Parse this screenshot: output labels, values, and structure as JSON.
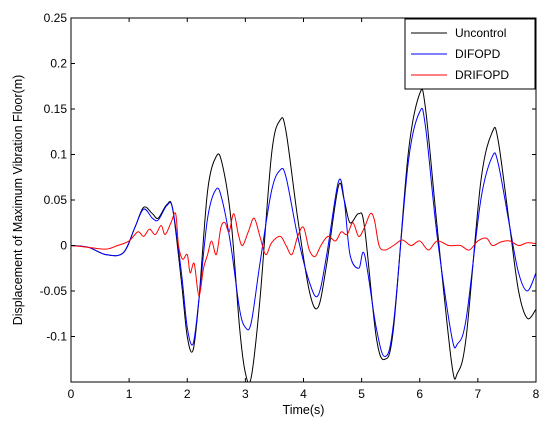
{
  "chart_data": {
    "type": "line",
    "title": "",
    "xlabel": "Time(s)",
    "ylabel": "Displacement of Maximum Vibration Floor(m)",
    "xlim": [
      0,
      8
    ],
    "ylim": [
      -0.15,
      0.25
    ],
    "xticks": [
      0,
      1,
      2,
      3,
      4,
      5,
      6,
      7,
      8
    ],
    "xtick_labels": [
      "0",
      "1",
      "2",
      "3",
      "4",
      "5",
      "6",
      "7",
      "8"
    ],
    "yticks": [
      -0.1,
      -0.05,
      0,
      0.05,
      0.1,
      0.15,
      0.2,
      0.25
    ],
    "ytick_labels": [
      "-0.1",
      "-0.05",
      "0",
      "0.05",
      "0.1",
      "0.15",
      "0.2",
      "0.25"
    ],
    "grid": false,
    "legend_position": "top-right",
    "series": [
      {
        "name": "Uncontrol",
        "color": "#000000",
        "points": [
          [
            0,
            0
          ],
          [
            0.3,
            -0.002
          ],
          [
            0.6,
            -0.01
          ],
          [
            0.9,
            -0.008
          ],
          [
            1.1,
            0.02
          ],
          [
            1.25,
            0.042
          ],
          [
            1.4,
            0.035
          ],
          [
            1.5,
            0.03
          ],
          [
            1.65,
            0.045
          ],
          [
            1.75,
            0.04
          ],
          [
            1.9,
            -0.04
          ],
          [
            2.0,
            -0.1
          ],
          [
            2.1,
            -0.115
          ],
          [
            2.2,
            -0.06
          ],
          [
            2.35,
            0.06
          ],
          [
            2.5,
            0.098
          ],
          [
            2.6,
            0.09
          ],
          [
            2.75,
            0.03
          ],
          [
            2.9,
            -0.09
          ],
          [
            3.0,
            -0.14
          ],
          [
            3.1,
            -0.145
          ],
          [
            3.25,
            -0.06
          ],
          [
            3.45,
            0.1
          ],
          [
            3.6,
            0.138
          ],
          [
            3.7,
            0.125
          ],
          [
            3.9,
            0.03
          ],
          [
            4.1,
            -0.05
          ],
          [
            4.25,
            -0.068
          ],
          [
            4.4,
            -0.02
          ],
          [
            4.6,
            0.065
          ],
          [
            4.7,
            0.05
          ],
          [
            4.8,
            0.025
          ],
          [
            4.95,
            0.035
          ],
          [
            5.05,
            0.02
          ],
          [
            5.25,
            -0.1
          ],
          [
            5.4,
            -0.125
          ],
          [
            5.55,
            -0.09
          ],
          [
            5.8,
            0.1
          ],
          [
            6.0,
            0.167
          ],
          [
            6.1,
            0.15
          ],
          [
            6.3,
            0.02
          ],
          [
            6.55,
            -0.13
          ],
          [
            6.65,
            -0.14
          ],
          [
            6.8,
            -0.1
          ],
          [
            7.05,
            0.07
          ],
          [
            7.25,
            0.125
          ],
          [
            7.35,
            0.115
          ],
          [
            7.55,
            0.02
          ],
          [
            7.7,
            -0.05
          ],
          [
            7.85,
            -0.08
          ],
          [
            8.0,
            -0.07
          ]
        ]
      },
      {
        "name": "DIFOPD",
        "color": "#0000ff",
        "points": [
          [
            0,
            0
          ],
          [
            0.3,
            -0.002
          ],
          [
            0.6,
            -0.01
          ],
          [
            0.9,
            -0.008
          ],
          [
            1.1,
            0.02
          ],
          [
            1.25,
            0.04
          ],
          [
            1.4,
            0.03
          ],
          [
            1.5,
            0.028
          ],
          [
            1.65,
            0.044
          ],
          [
            1.75,
            0.04
          ],
          [
            1.9,
            -0.03
          ],
          [
            2.0,
            -0.09
          ],
          [
            2.1,
            -0.108
          ],
          [
            2.2,
            -0.06
          ],
          [
            2.35,
            0.03
          ],
          [
            2.5,
            0.062
          ],
          [
            2.6,
            0.05
          ],
          [
            2.75,
            0.0
          ],
          [
            2.9,
            -0.07
          ],
          [
            3.0,
            -0.09
          ],
          [
            3.1,
            -0.085
          ],
          [
            3.25,
            -0.02
          ],
          [
            3.45,
            0.06
          ],
          [
            3.6,
            0.083
          ],
          [
            3.7,
            0.075
          ],
          [
            3.9,
            0.01
          ],
          [
            4.1,
            -0.04
          ],
          [
            4.25,
            -0.055
          ],
          [
            4.4,
            -0.01
          ],
          [
            4.6,
            0.07
          ],
          [
            4.7,
            0.05
          ],
          [
            4.8,
            -0.01
          ],
          [
            4.95,
            -0.025
          ],
          [
            5.05,
            -0.01
          ],
          [
            5.25,
            -0.09
          ],
          [
            5.4,
            -0.122
          ],
          [
            5.55,
            -0.085
          ],
          [
            5.8,
            0.09
          ],
          [
            6.0,
            0.147
          ],
          [
            6.1,
            0.13
          ],
          [
            6.3,
            0.01
          ],
          [
            6.55,
            -0.1
          ],
          [
            6.65,
            -0.108
          ],
          [
            6.8,
            -0.08
          ],
          [
            7.05,
            0.05
          ],
          [
            7.25,
            0.098
          ],
          [
            7.35,
            0.09
          ],
          [
            7.55,
            0.02
          ],
          [
            7.7,
            -0.03
          ],
          [
            7.85,
            -0.05
          ],
          [
            8.0,
            -0.03
          ]
        ]
      },
      {
        "name": "DRIFOPD",
        "color": "#ff0000",
        "points": [
          [
            0,
            0
          ],
          [
            0.3,
            -0.002
          ],
          [
            0.6,
            -0.004
          ],
          [
            0.8,
            0.0
          ],
          [
            1.0,
            0.005
          ],
          [
            1.15,
            0.015
          ],
          [
            1.25,
            0.01
          ],
          [
            1.35,
            0.018
          ],
          [
            1.45,
            0.012
          ],
          [
            1.55,
            0.022
          ],
          [
            1.62,
            0.012
          ],
          [
            1.72,
            0.025
          ],
          [
            1.8,
            0.035
          ],
          [
            1.85,
            0.0
          ],
          [
            1.92,
            -0.015
          ],
          [
            2.0,
            -0.01
          ],
          [
            2.05,
            -0.03
          ],
          [
            2.12,
            -0.02
          ],
          [
            2.2,
            -0.055
          ],
          [
            2.28,
            -0.025
          ],
          [
            2.35,
            -0.01
          ],
          [
            2.42,
            0.005
          ],
          [
            2.5,
            -0.01
          ],
          [
            2.58,
            0.02
          ],
          [
            2.65,
            0.025
          ],
          [
            2.72,
            0.015
          ],
          [
            2.8,
            0.035
          ],
          [
            2.88,
            0.012
          ],
          [
            2.95,
            0.0
          ],
          [
            3.05,
            0.015
          ],
          [
            3.15,
            0.03
          ],
          [
            3.25,
            0.01
          ],
          [
            3.35,
            -0.01
          ],
          [
            3.45,
            0.003
          ],
          [
            3.6,
            0.01
          ],
          [
            3.7,
            0.0
          ],
          [
            3.8,
            -0.01
          ],
          [
            3.9,
            0.01
          ],
          [
            4.0,
            0.02
          ],
          [
            4.1,
            -0.005
          ],
          [
            4.2,
            -0.012
          ],
          [
            4.3,
            0.0
          ],
          [
            4.42,
            0.01
          ],
          [
            4.55,
            0.005
          ],
          [
            4.65,
            0.015
          ],
          [
            4.75,
            0.012
          ],
          [
            4.85,
            0.025
          ],
          [
            4.95,
            0.01
          ],
          [
            5.05,
            0.02
          ],
          [
            5.15,
            0.035
          ],
          [
            5.22,
            0.028
          ],
          [
            5.3,
            0.0
          ],
          [
            5.4,
            -0.005
          ],
          [
            5.55,
            0.0
          ],
          [
            5.7,
            0.006
          ],
          [
            5.85,
            0.0
          ],
          [
            6.0,
            0.005
          ],
          [
            6.15,
            -0.005
          ],
          [
            6.3,
            0.005
          ],
          [
            6.5,
            0.0
          ],
          [
            6.7,
            0.0
          ],
          [
            6.85,
            -0.005
          ],
          [
            7.0,
            0.005
          ],
          [
            7.15,
            0.008
          ],
          [
            7.25,
            0.0
          ],
          [
            7.4,
            0.004
          ],
          [
            7.55,
            0.005
          ],
          [
            7.7,
            0.0
          ],
          [
            7.85,
            0.003
          ],
          [
            8.0,
            0.002
          ]
        ]
      }
    ]
  }
}
